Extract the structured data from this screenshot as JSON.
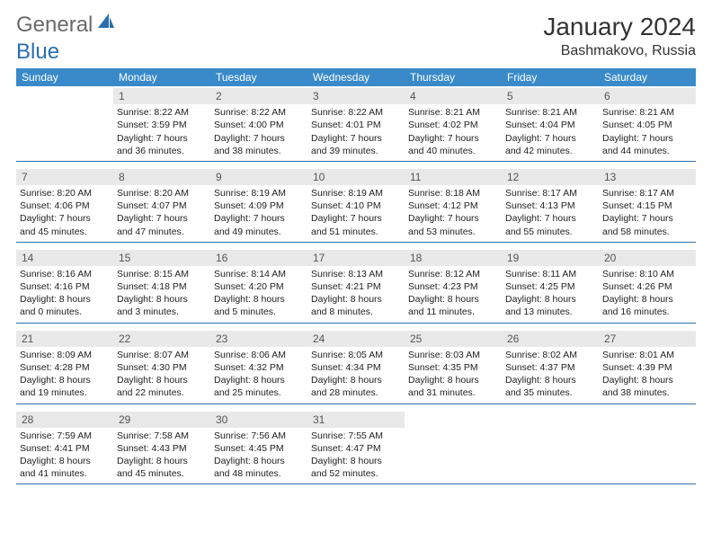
{
  "logo": {
    "general": "General",
    "blue": "Blue"
  },
  "title": "January 2024",
  "location": "Bashmakovo, Russia",
  "colors": {
    "header_bg": "#3a8ac9",
    "row_border": "#2a6fb0",
    "daynum_bg": "#e9e9e9",
    "text": "#222222",
    "logo_gray": "#6a6a6a",
    "logo_blue": "#2a6fb0"
  },
  "dow": [
    "Sunday",
    "Monday",
    "Tuesday",
    "Wednesday",
    "Thursday",
    "Friday",
    "Saturday"
  ],
  "weeks": [
    [
      {
        "blank": true
      },
      {
        "n": "1",
        "sr": "Sunrise: 8:22 AM",
        "ss": "Sunset: 3:59 PM",
        "d1": "Daylight: 7 hours",
        "d2": "and 36 minutes."
      },
      {
        "n": "2",
        "sr": "Sunrise: 8:22 AM",
        "ss": "Sunset: 4:00 PM",
        "d1": "Daylight: 7 hours",
        "d2": "and 38 minutes."
      },
      {
        "n": "3",
        "sr": "Sunrise: 8:22 AM",
        "ss": "Sunset: 4:01 PM",
        "d1": "Daylight: 7 hours",
        "d2": "and 39 minutes."
      },
      {
        "n": "4",
        "sr": "Sunrise: 8:21 AM",
        "ss": "Sunset: 4:02 PM",
        "d1": "Daylight: 7 hours",
        "d2": "and 40 minutes."
      },
      {
        "n": "5",
        "sr": "Sunrise: 8:21 AM",
        "ss": "Sunset: 4:04 PM",
        "d1": "Daylight: 7 hours",
        "d2": "and 42 minutes."
      },
      {
        "n": "6",
        "sr": "Sunrise: 8:21 AM",
        "ss": "Sunset: 4:05 PM",
        "d1": "Daylight: 7 hours",
        "d2": "and 44 minutes."
      }
    ],
    [
      {
        "n": "7",
        "sr": "Sunrise: 8:20 AM",
        "ss": "Sunset: 4:06 PM",
        "d1": "Daylight: 7 hours",
        "d2": "and 45 minutes."
      },
      {
        "n": "8",
        "sr": "Sunrise: 8:20 AM",
        "ss": "Sunset: 4:07 PM",
        "d1": "Daylight: 7 hours",
        "d2": "and 47 minutes."
      },
      {
        "n": "9",
        "sr": "Sunrise: 8:19 AM",
        "ss": "Sunset: 4:09 PM",
        "d1": "Daylight: 7 hours",
        "d2": "and 49 minutes."
      },
      {
        "n": "10",
        "sr": "Sunrise: 8:19 AM",
        "ss": "Sunset: 4:10 PM",
        "d1": "Daylight: 7 hours",
        "d2": "and 51 minutes."
      },
      {
        "n": "11",
        "sr": "Sunrise: 8:18 AM",
        "ss": "Sunset: 4:12 PM",
        "d1": "Daylight: 7 hours",
        "d2": "and 53 minutes."
      },
      {
        "n": "12",
        "sr": "Sunrise: 8:17 AM",
        "ss": "Sunset: 4:13 PM",
        "d1": "Daylight: 7 hours",
        "d2": "and 55 minutes."
      },
      {
        "n": "13",
        "sr": "Sunrise: 8:17 AM",
        "ss": "Sunset: 4:15 PM",
        "d1": "Daylight: 7 hours",
        "d2": "and 58 minutes."
      }
    ],
    [
      {
        "n": "14",
        "sr": "Sunrise: 8:16 AM",
        "ss": "Sunset: 4:16 PM",
        "d1": "Daylight: 8 hours",
        "d2": "and 0 minutes."
      },
      {
        "n": "15",
        "sr": "Sunrise: 8:15 AM",
        "ss": "Sunset: 4:18 PM",
        "d1": "Daylight: 8 hours",
        "d2": "and 3 minutes."
      },
      {
        "n": "16",
        "sr": "Sunrise: 8:14 AM",
        "ss": "Sunset: 4:20 PM",
        "d1": "Daylight: 8 hours",
        "d2": "and 5 minutes."
      },
      {
        "n": "17",
        "sr": "Sunrise: 8:13 AM",
        "ss": "Sunset: 4:21 PM",
        "d1": "Daylight: 8 hours",
        "d2": "and 8 minutes."
      },
      {
        "n": "18",
        "sr": "Sunrise: 8:12 AM",
        "ss": "Sunset: 4:23 PM",
        "d1": "Daylight: 8 hours",
        "d2": "and 11 minutes."
      },
      {
        "n": "19",
        "sr": "Sunrise: 8:11 AM",
        "ss": "Sunset: 4:25 PM",
        "d1": "Daylight: 8 hours",
        "d2": "and 13 minutes."
      },
      {
        "n": "20",
        "sr": "Sunrise: 8:10 AM",
        "ss": "Sunset: 4:26 PM",
        "d1": "Daylight: 8 hours",
        "d2": "and 16 minutes."
      }
    ],
    [
      {
        "n": "21",
        "sr": "Sunrise: 8:09 AM",
        "ss": "Sunset: 4:28 PM",
        "d1": "Daylight: 8 hours",
        "d2": "and 19 minutes."
      },
      {
        "n": "22",
        "sr": "Sunrise: 8:07 AM",
        "ss": "Sunset: 4:30 PM",
        "d1": "Daylight: 8 hours",
        "d2": "and 22 minutes."
      },
      {
        "n": "23",
        "sr": "Sunrise: 8:06 AM",
        "ss": "Sunset: 4:32 PM",
        "d1": "Daylight: 8 hours",
        "d2": "and 25 minutes."
      },
      {
        "n": "24",
        "sr": "Sunrise: 8:05 AM",
        "ss": "Sunset: 4:34 PM",
        "d1": "Daylight: 8 hours",
        "d2": "and 28 minutes."
      },
      {
        "n": "25",
        "sr": "Sunrise: 8:03 AM",
        "ss": "Sunset: 4:35 PM",
        "d1": "Daylight: 8 hours",
        "d2": "and 31 minutes."
      },
      {
        "n": "26",
        "sr": "Sunrise: 8:02 AM",
        "ss": "Sunset: 4:37 PM",
        "d1": "Daylight: 8 hours",
        "d2": "and 35 minutes."
      },
      {
        "n": "27",
        "sr": "Sunrise: 8:01 AM",
        "ss": "Sunset: 4:39 PM",
        "d1": "Daylight: 8 hours",
        "d2": "and 38 minutes."
      }
    ],
    [
      {
        "n": "28",
        "sr": "Sunrise: 7:59 AM",
        "ss": "Sunset: 4:41 PM",
        "d1": "Daylight: 8 hours",
        "d2": "and 41 minutes."
      },
      {
        "n": "29",
        "sr": "Sunrise: 7:58 AM",
        "ss": "Sunset: 4:43 PM",
        "d1": "Daylight: 8 hours",
        "d2": "and 45 minutes."
      },
      {
        "n": "30",
        "sr": "Sunrise: 7:56 AM",
        "ss": "Sunset: 4:45 PM",
        "d1": "Daylight: 8 hours",
        "d2": "and 48 minutes."
      },
      {
        "n": "31",
        "sr": "Sunrise: 7:55 AM",
        "ss": "Sunset: 4:47 PM",
        "d1": "Daylight: 8 hours",
        "d2": "and 52 minutes."
      },
      {
        "blank": true
      },
      {
        "blank": true
      },
      {
        "blank": true
      }
    ]
  ]
}
